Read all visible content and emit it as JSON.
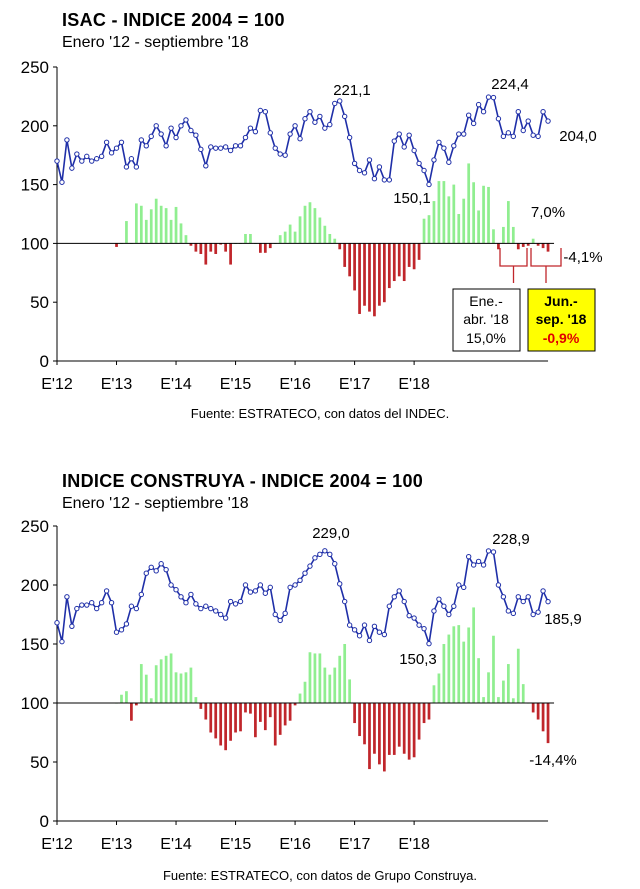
{
  "chart_data": [
    {
      "type": "line",
      "title": "ISAC  - INDICE 2004 = 100",
      "subtitle": "Enero '12 - septiembre '18",
      "source": "Fuente: ESTRATECO, con datos del INDEC.",
      "ylim": [
        0,
        250
      ],
      "yticks": [
        "0",
        "50",
        "100",
        "150",
        "200",
        "250"
      ],
      "xticks": [
        "E'12",
        "E'13",
        "E'14",
        "E'15",
        "E'16",
        "E'17",
        "E'18"
      ],
      "baseline": 100,
      "colors": {
        "line": "#1f2fa8",
        "positive": "#90ee90",
        "negative": "#c0262b",
        "highlight_box": "#ffff00",
        "highlight_text": "#e00000"
      },
      "series": [
        {
          "kind": "line",
          "values": [
            170,
            152,
            188,
            164,
            176,
            170,
            174,
            170,
            172,
            174,
            186,
            177,
            181,
            186,
            165,
            172,
            165,
            188,
            183,
            191,
            200,
            193,
            183,
            198,
            190,
            200,
            205,
            196,
            192,
            180,
            166,
            182,
            181,
            181,
            182,
            179,
            183,
            183,
            190,
            198,
            195,
            213,
            212,
            194,
            181,
            176,
            175,
            193,
            200,
            189,
            206,
            212,
            203,
            208,
            198,
            201,
            219,
            221.1,
            208,
            190,
            168,
            162,
            160,
            171,
            155,
            165,
            154,
            154,
            187,
            193,
            182,
            192,
            179,
            168,
            162,
            150.1,
            171,
            186,
            181,
            169,
            183,
            193,
            193,
            209,
            202,
            218,
            212,
            224.4,
            224,
            206,
            191,
            194,
            191,
            212,
            196,
            204,
            192,
            191,
            212,
            204
          ]
        },
        {
          "kind": "bar",
          "values": [
            null,
            null,
            null,
            null,
            null,
            null,
            null,
            null,
            null,
            null,
            null,
            null,
            97,
            100,
            119,
            100,
            134,
            132,
            120,
            129,
            138,
            132,
            130,
            120,
            131,
            117,
            107,
            98,
            93,
            91,
            82,
            93,
            91,
            99,
            93,
            82,
            100,
            100,
            108,
            108,
            100,
            92,
            92,
            96,
            100,
            107,
            110,
            116,
            110,
            123,
            132,
            135,
            130,
            122,
            115,
            108,
            104,
            95,
            80,
            72,
            60,
            40,
            47,
            42,
            38,
            47,
            50,
            62,
            68,
            72,
            68,
            80,
            78,
            86,
            121,
            124,
            136,
            153,
            153,
            140,
            150,
            125,
            138,
            168,
            152,
            128,
            149,
            148,
            112,
            95,
            114,
            136,
            114,
            95,
            97,
            98,
            104,
            98,
            96,
            93
          ]
        }
      ],
      "annotations": [
        "221,1",
        "224,4",
        "204,0",
        "150,1",
        "7,0%",
        "-4,1%"
      ],
      "boxes": [
        {
          "line1": "Ene.-",
          "line2": "abr. '18",
          "line3": "15,0%"
        },
        {
          "line1": "Jun.-",
          "line2": "sep. '18",
          "line3": "-0,9%"
        }
      ]
    },
    {
      "type": "line",
      "title": "INDICE CONSTRUYA - INDICE 2004 = 100",
      "subtitle": "Enero '12 - septiembre '18",
      "source": "Fuente: ESTRATECO, con datos de Grupo Construya.",
      "ylim": [
        0,
        250
      ],
      "yticks": [
        "0",
        "50",
        "100",
        "150",
        "200",
        "250"
      ],
      "xticks": [
        "E'12",
        "E'13",
        "E'14",
        "E'15",
        "E'16",
        "E'17",
        "E'18"
      ],
      "baseline": 100,
      "colors": {
        "line": "#1f2fa8",
        "positive": "#90ee90",
        "negative": "#c0262b"
      },
      "series": [
        {
          "kind": "line",
          "values": [
            168,
            152,
            190,
            165,
            180,
            183,
            183,
            185,
            180,
            185,
            195,
            185,
            160,
            162,
            167,
            182,
            180,
            192,
            210,
            215,
            212,
            218,
            213,
            200,
            196,
            190,
            185,
            192,
            184,
            180,
            182,
            180,
            178,
            175,
            172,
            186,
            184,
            186,
            200,
            194,
            195,
            200,
            193,
            198,
            175,
            170,
            176,
            198,
            200,
            204,
            210,
            216,
            223,
            226,
            229,
            226,
            218,
            201,
            186,
            166,
            162,
            157,
            166,
            153,
            165,
            160,
            158,
            182,
            190,
            195,
            186,
            174,
            172,
            166,
            163,
            150.3,
            178,
            188,
            182,
            175,
            182,
            200,
            198,
            224,
            217,
            220,
            217,
            228.9,
            228,
            200,
            190,
            178,
            176,
            190,
            186,
            190,
            175,
            177,
            195,
            185.9
          ]
        },
        {
          "kind": "bar",
          "values": [
            null,
            null,
            null,
            null,
            null,
            null,
            null,
            null,
            null,
            null,
            null,
            null,
            100,
            107,
            110,
            85,
            98,
            133,
            124,
            104,
            132,
            137,
            140,
            142,
            126,
            125,
            126,
            130,
            105,
            95,
            86,
            75,
            70,
            64,
            60,
            68,
            75,
            76,
            92,
            91,
            71,
            84,
            77,
            88,
            64,
            73,
            81,
            85,
            98,
            108,
            118,
            143,
            142,
            142,
            130,
            124,
            130,
            140,
            150,
            120,
            83,
            72,
            65,
            44,
            57,
            48,
            42,
            56,
            56,
            63,
            57,
            52,
            54,
            69,
            83,
            86,
            115,
            125,
            150,
            158,
            165,
            166,
            152,
            164,
            181,
            138,
            105,
            126,
            157,
            105,
            119,
            133,
            104,
            146,
            116,
            100,
            92,
            86,
            76,
            66
          ]
        }
      ],
      "annotations": [
        "229,0",
        "228,9",
        "185,9",
        "150,3",
        "-14,4%"
      ]
    }
  ]
}
